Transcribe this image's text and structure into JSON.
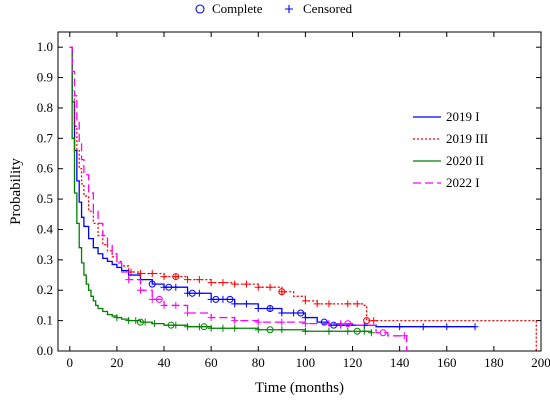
{
  "chart_data": {
    "type": "line",
    "xlabel": "Time (months)",
    "ylabel": "Probability",
    "xlim": [
      -5,
      200
    ],
    "ylim": [
      0,
      1.05
    ],
    "x_ticks": [
      0,
      20,
      40,
      60,
      80,
      100,
      120,
      140,
      160,
      180,
      200
    ],
    "y_ticks": [
      0.0,
      0.1,
      0.2,
      0.3,
      0.4,
      0.5,
      0.6,
      0.7,
      0.8,
      0.9,
      1.0
    ],
    "x_tick_labels": [
      "0",
      "20",
      "40",
      "60",
      "80",
      "100",
      "120",
      "140",
      "160",
      "180",
      "200"
    ],
    "y_tick_labels": [
      "0.0",
      "0.1",
      "0.2",
      "0.3",
      "0.4",
      "0.5",
      "0.6",
      "0.7",
      "0.8",
      "0.9",
      "1.0"
    ],
    "grid": false,
    "marker_legend": {
      "placement": "top-center",
      "items": [
        {
          "label": "Complete",
          "marker": "circle"
        },
        {
          "label": "Censored",
          "marker": "plus"
        }
      ]
    },
    "legend": {
      "placement": "right"
    },
    "series": [
      {
        "name": "2019 I",
        "color": "#0000ff",
        "dash": "solid",
        "x": [
          0,
          1,
          2,
          3,
          4,
          5,
          6,
          8,
          10,
          12,
          14,
          16,
          18,
          20,
          22,
          25,
          30,
          35,
          40,
          50,
          60,
          70,
          80,
          90,
          100,
          105,
          110,
          120,
          130,
          172
        ],
        "y": [
          1.0,
          0.82,
          0.66,
          0.56,
          0.49,
          0.44,
          0.41,
          0.37,
          0.34,
          0.32,
          0.305,
          0.295,
          0.285,
          0.275,
          0.265,
          0.25,
          0.235,
          0.22,
          0.21,
          0.19,
          0.17,
          0.155,
          0.14,
          0.125,
          0.11,
          0.095,
          0.085,
          0.085,
          0.08,
          0.08
        ],
        "censored": [
          30,
          40,
          45,
          50,
          55,
          60,
          65,
          70,
          75,
          80,
          85,
          90,
          95,
          100,
          115,
          125,
          140,
          150,
          160,
          172
        ],
        "complete": [
          35,
          42,
          52,
          62,
          68,
          85,
          98,
          108,
          112
        ]
      },
      {
        "name": "2019 III",
        "color": "#ff0000",
        "dash": "dotted",
        "x": [
          0,
          1,
          2,
          3,
          4,
          5,
          6,
          8,
          10,
          12,
          14,
          16,
          18,
          20,
          22,
          25,
          30,
          40,
          50,
          60,
          70,
          80,
          90,
          95,
          100,
          105,
          115,
          125,
          126,
          198,
          198
        ],
        "y": [
          1.0,
          0.86,
          0.74,
          0.66,
          0.6,
          0.55,
          0.51,
          0.46,
          0.42,
          0.38,
          0.35,
          0.33,
          0.31,
          0.295,
          0.28,
          0.26,
          0.255,
          0.245,
          0.235,
          0.225,
          0.22,
          0.21,
          0.195,
          0.18,
          0.165,
          0.155,
          0.155,
          0.15,
          0.1,
          0.1,
          0.0
        ],
        "censored": [
          26,
          30,
          35,
          40,
          45,
          50,
          55,
          60,
          65,
          70,
          75,
          80,
          85,
          90,
          100,
          105,
          110,
          118,
          122,
          129
        ],
        "complete": [
          45,
          90,
          126
        ]
      },
      {
        "name": "2020 II",
        "color": "#008000",
        "dash": "solid",
        "x": [
          0,
          1,
          2,
          3,
          4,
          5,
          6,
          7,
          8,
          9,
          10,
          11,
          12,
          14,
          16,
          18,
          20,
          22,
          25,
          30,
          35,
          40,
          50,
          60,
          80,
          100,
          128
        ],
        "y": [
          1.0,
          0.7,
          0.52,
          0.42,
          0.34,
          0.29,
          0.25,
          0.22,
          0.2,
          0.18,
          0.165,
          0.15,
          0.14,
          0.13,
          0.12,
          0.115,
          0.11,
          0.105,
          0.1,
          0.095,
          0.09,
          0.085,
          0.08,
          0.075,
          0.07,
          0.065,
          0.06
        ],
        "censored": [
          20,
          25,
          28,
          32,
          36,
          45,
          50,
          55,
          60,
          65,
          70,
          80,
          90,
          100,
          110,
          118,
          125,
          128
        ],
        "complete": [
          30,
          43,
          57,
          85,
          122
        ]
      },
      {
        "name": "2022 I",
        "color": "#ff00ff",
        "dash": "dashed",
        "x": [
          0,
          1,
          2,
          3,
          4,
          5,
          6,
          8,
          10,
          12,
          14,
          16,
          18,
          20,
          22,
          25,
          30,
          35,
          40,
          50,
          60,
          70,
          80,
          100,
          120,
          130,
          135,
          142,
          143
        ],
        "y": [
          1.0,
          0.92,
          0.84,
          0.76,
          0.69,
          0.63,
          0.58,
          0.52,
          0.46,
          0.42,
          0.38,
          0.35,
          0.32,
          0.29,
          0.26,
          0.235,
          0.2,
          0.17,
          0.15,
          0.125,
          0.11,
          0.1,
          0.095,
          0.09,
          0.085,
          0.06,
          0.05,
          0.05,
          0.0
        ],
        "censored": [
          25,
          30,
          35,
          40,
          45,
          50,
          60,
          70,
          80,
          90,
          100,
          110,
          115,
          142
        ],
        "complete": [
          38,
          118,
          133
        ]
      }
    ]
  }
}
